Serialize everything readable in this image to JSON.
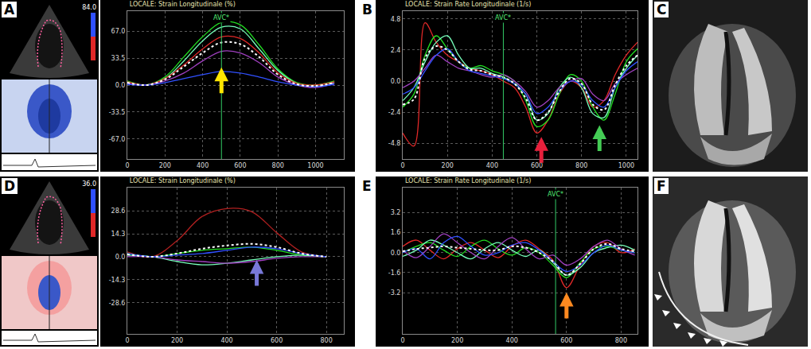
{
  "chart_data": [
    {
      "panel": "A",
      "type": "line",
      "title": "LOCALE: Strain Longitudinale (%)",
      "x": [
        0,
        100,
        200,
        300,
        400,
        500,
        600,
        700,
        800,
        900,
        1000,
        1100
      ],
      "series": [
        {
          "color": "#22dd22",
          "line_style": "solid",
          "values": [
            5,
            0,
            10,
            35,
            60,
            78,
            75,
            50,
            20,
            3,
            0,
            5
          ]
        },
        {
          "color": "#77ffbb",
          "line_style": "solid",
          "values": [
            3,
            0,
            8,
            30,
            55,
            72,
            70,
            45,
            18,
            2,
            -2,
            3
          ]
        },
        {
          "color": "#e02828",
          "line_style": "solid",
          "values": [
            4,
            0,
            8,
            25,
            45,
            60,
            58,
            40,
            15,
            2,
            0,
            4
          ]
        },
        {
          "color": "#a040c0",
          "line_style": "solid",
          "values": [
            2,
            0,
            5,
            15,
            30,
            42,
            40,
            28,
            10,
            0,
            -3,
            2
          ]
        },
        {
          "color": "#3050ff",
          "line_style": "solid",
          "values": [
            1,
            0,
            3,
            8,
            13,
            17,
            15,
            10,
            4,
            0,
            -2,
            1
          ]
        },
        {
          "color": "#ffffff",
          "line_style": "dotted",
          "values": [
            3,
            0,
            7,
            23,
            40,
            53,
            51,
            35,
            13,
            1,
            -1,
            3
          ]
        }
      ],
      "xlim": [
        0,
        1150
      ],
      "ylim": [
        -92,
        92
      ],
      "xticks": [
        0,
        200,
        400,
        600,
        800,
        1000
      ],
      "yticks": [
        {
          "value": 67,
          "label": "67.0"
        },
        33.5,
        {
          "value": 0,
          "label": "0.0"
        },
        -33.5,
        {
          "value": -67,
          "label": "-67.0"
        }
      ],
      "grid": true,
      "annotations": [
        {
          "text": "AVC*",
          "x": 500
        }
      ],
      "arrows": [
        {
          "x": 500,
          "y": 22,
          "color": "#ffe600"
        }
      ],
      "colorbar_ticks": [
        {
          "value": 84,
          "label": "84.0"
        }
      ]
    },
    {
      "panel": "B",
      "type": "line",
      "title": "LOCALE: Strain Rate Longitudinale (1/s)",
      "x": [
        0,
        50,
        100,
        150,
        200,
        250,
        300,
        350,
        400,
        450,
        500,
        550,
        600,
        650,
        700,
        750,
        800,
        850,
        900,
        950,
        1000,
        1050
      ],
      "series": [
        {
          "color": "#e02828",
          "line_style": "solid",
          "values": [
            -4,
            -5,
            4.5,
            3,
            2,
            1.5,
            1,
            0.8,
            0.5,
            0,
            -0.5,
            -2,
            -4,
            -3,
            -1,
            0,
            -0.5,
            -2,
            -1.5,
            0.5,
            2,
            3
          ]
        },
        {
          "color": "#22dd22",
          "line_style": "solid",
          "values": [
            -2,
            -1,
            2,
            3.5,
            2.5,
            1.5,
            1,
            1.2,
            0.8,
            0.5,
            0,
            -1.5,
            -3.5,
            -3,
            -1,
            0.5,
            0,
            -2,
            -3,
            -1,
            1.5,
            2.5
          ]
        },
        {
          "color": "#77ffbb",
          "line_style": "solid",
          "values": [
            -1.5,
            -0.5,
            1.5,
            3,
            3.5,
            2,
            1,
            1,
            0.6,
            0.3,
            -0.2,
            -1,
            -3,
            -2.5,
            -0.5,
            0.3,
            -0.5,
            -2.5,
            -2.8,
            -0.5,
            1,
            2
          ]
        },
        {
          "color": "#a040c0",
          "line_style": "solid",
          "values": [
            -0.5,
            0,
            1,
            2,
            1.5,
            1,
            0.8,
            0.5,
            0.3,
            0.5,
            0,
            -0.8,
            -2,
            -1.5,
            -0.5,
            0,
            0.2,
            -1,
            -1.5,
            -0.2,
            0.5,
            1
          ]
        },
        {
          "color": "#3050ff",
          "line_style": "solid",
          "values": [
            -1,
            -0.5,
            0.8,
            2,
            2.5,
            1.5,
            0.8,
            0.6,
            0.4,
            0.2,
            -0.2,
            -1,
            -2.5,
            -2,
            -0.8,
            0,
            -0.3,
            -1.5,
            -2,
            -0.5,
            0.8,
            1.5
          ]
        },
        {
          "color": "#ffffff",
          "line_style": "dotted",
          "values": [
            -1.8,
            -1.4,
            1.8,
            2.7,
            2.4,
            1.5,
            0.9,
            0.8,
            0.5,
            0.3,
            -0.2,
            -1.3,
            -3,
            -2.4,
            -0.8,
            0.2,
            -0.2,
            -1.8,
            -2.2,
            -0.3,
            1.2,
            2
          ]
        }
      ],
      "xlim": [
        0,
        1050
      ],
      "ylim": [
        -6,
        5.4
      ],
      "xticks": [
        0,
        200,
        400,
        600,
        800,
        1000
      ],
      "yticks": [
        4.8,
        2.4,
        {
          "value": 0,
          "label": "0.0"
        },
        -2.4,
        -4.8
      ],
      "grid": true,
      "annotations": [
        {
          "text": "AVC*",
          "x": 450
        }
      ],
      "arrows": [
        {
          "x": 620,
          "y": -4.3,
          "color": "#e8203c"
        },
        {
          "x": 880,
          "y": -3.4,
          "color": "#44cc55"
        }
      ]
    },
    {
      "panel": "D",
      "type": "line",
      "title": "LOCALE: Strain Longitudinale (%)",
      "x": [
        0,
        100,
        200,
        300,
        400,
        500,
        600,
        700,
        800
      ],
      "series": [
        {
          "color": "#b02020",
          "line_style": "solid",
          "values": [
            3,
            0,
            10,
            25,
            30,
            28,
            15,
            3,
            0
          ]
        },
        {
          "color": "#22dd22",
          "line_style": "solid",
          "values": [
            2,
            0,
            2,
            4,
            5,
            6,
            4,
            1,
            0
          ]
        },
        {
          "color": "#77ffbb",
          "line_style": "solid",
          "values": [
            1,
            0,
            -3,
            -5,
            -4,
            -2,
            0,
            1,
            0
          ]
        },
        {
          "color": "#a040c0",
          "line_style": "solid",
          "values": [
            0,
            0,
            -2,
            -3,
            -4,
            -3,
            -1,
            0,
            0
          ]
        },
        {
          "color": "#3050ff",
          "line_style": "solid",
          "values": [
            2,
            0,
            1,
            2,
            4,
            6,
            5,
            2,
            0
          ]
        },
        {
          "color": "#ffffff",
          "line_style": "dotted",
          "values": [
            1.5,
            0,
            2,
            5,
            7,
            8,
            6,
            2,
            0
          ]
        }
      ],
      "xlim": [
        0,
        870
      ],
      "ylim": [
        -48,
        43
      ],
      "xticks": [
        0,
        200,
        400,
        600,
        800
      ],
      "yticks": [
        28.6,
        14.3,
        {
          "value": 0,
          "label": "0.0"
        },
        -14.3,
        -28.6
      ],
      "grid": true,
      "arrows": [
        {
          "x": 520,
          "y": -2,
          "color": "#7878d8"
        }
      ],
      "colorbar_ticks": [
        {
          "value": 36,
          "label": "36.0"
        }
      ]
    },
    {
      "panel": "E",
      "type": "line",
      "title": "LOCALE: Strain Rate Longitudinale (1/s)",
      "x": [
        0,
        50,
        100,
        150,
        200,
        250,
        300,
        350,
        400,
        450,
        500,
        550,
        600,
        650,
        700,
        750,
        800,
        850
      ],
      "series": [
        {
          "color": "#e02828",
          "line_style": "solid",
          "values": [
            0.5,
            1,
            0.2,
            -0.5,
            0.3,
            0.8,
            0.2,
            -0.4,
            0.5,
            1,
            0.3,
            -0.6,
            -2.8,
            -1,
            0.5,
            0.8,
            0,
            0.3
          ]
        },
        {
          "color": "#22dd22",
          "line_style": "solid",
          "values": [
            0,
            0.5,
            0.8,
            0.2,
            -0.3,
            0.5,
            1,
            0.3,
            -0.2,
            0.4,
            0,
            -1,
            -2,
            -0.8,
            0.3,
            0.5,
            0.2,
            0
          ]
        },
        {
          "color": "#77ffbb",
          "line_style": "solid",
          "values": [
            -0.3,
            0.2,
            1,
            0.6,
            0,
            -0.5,
            0.3,
            0.8,
            0.2,
            -0.3,
            0.2,
            -0.8,
            -1.8,
            -1.2,
            0,
            0.4,
            0.6,
            0.2
          ]
        },
        {
          "color": "#a040c0",
          "line_style": "solid",
          "values": [
            0.2,
            -0.4,
            0.5,
            1.5,
            0.8,
            0,
            -0.5,
            0.5,
            1.2,
            0.3,
            -0.5,
            -0.2,
            -1,
            -0.5,
            0.5,
            1,
            0.3,
            -0.2
          ]
        },
        {
          "color": "#3050ff",
          "line_style": "solid",
          "values": [
            0,
            0.3,
            -0.5,
            0.8,
            1.3,
            0.5,
            -0.2,
            0,
            0.6,
            0.8,
            0.2,
            -0.7,
            -1.5,
            -1,
            0,
            0.6,
            0.2,
            0
          ]
        },
        {
          "color": "#ffffff",
          "line_style": "dotted",
          "values": [
            0.1,
            0.3,
            0.4,
            0.5,
            0.4,
            0.3,
            0.2,
            0.2,
            0.5,
            0.4,
            0,
            -0.7,
            -1.8,
            -0.9,
            0.3,
            0.7,
            0.3,
            0.1
          ]
        }
      ],
      "xlim": [
        0,
        860
      ],
      "ylim": [
        -6.5,
        5.2
      ],
      "xticks": [
        0,
        200,
        400,
        600,
        800
      ],
      "yticks": [
        3.2,
        1.6,
        {
          "value": 0,
          "label": "0.0"
        },
        -1.6,
        -3.2
      ],
      "grid": true,
      "annotations": [
        {
          "text": "AVC*",
          "x": 560
        }
      ],
      "arrows": [
        {
          "x": 600,
          "y": -3.2,
          "color": "#ff8a20"
        }
      ]
    }
  ],
  "images": [
    {
      "panel": "C"
    },
    {
      "panel": "F",
      "arrowheads": true
    }
  ]
}
